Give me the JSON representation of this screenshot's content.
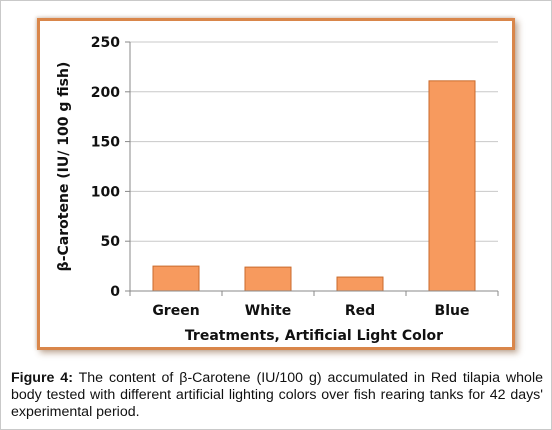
{
  "chart_data": {
    "type": "bar",
    "title": "",
    "categories": [
      "Green",
      "White",
      "Red",
      "Blue"
    ],
    "values": [
      25,
      24,
      14,
      211
    ],
    "xlabel": "Treatments, Artificial Light Color",
    "ylabel": "β-Carotene (IU/ 100 g fish)",
    "ylim": [
      0,
      250
    ],
    "yticks": [
      0,
      50,
      100,
      150,
      200,
      250
    ],
    "grid": true,
    "legend": "none",
    "colors": {
      "bar_fill": "#f79a5e",
      "bar_stroke": "#c96a2c",
      "frame": "#d9864a",
      "grid": "#c8c8c8"
    }
  },
  "caption": {
    "label": "Figure 4:",
    "text": " The content of β-Carotene (IU/100 g) accumulated in Red tilapia whole body tested with different artificial lighting colors over fish rearing tanks for 42 days' experimental period."
  }
}
